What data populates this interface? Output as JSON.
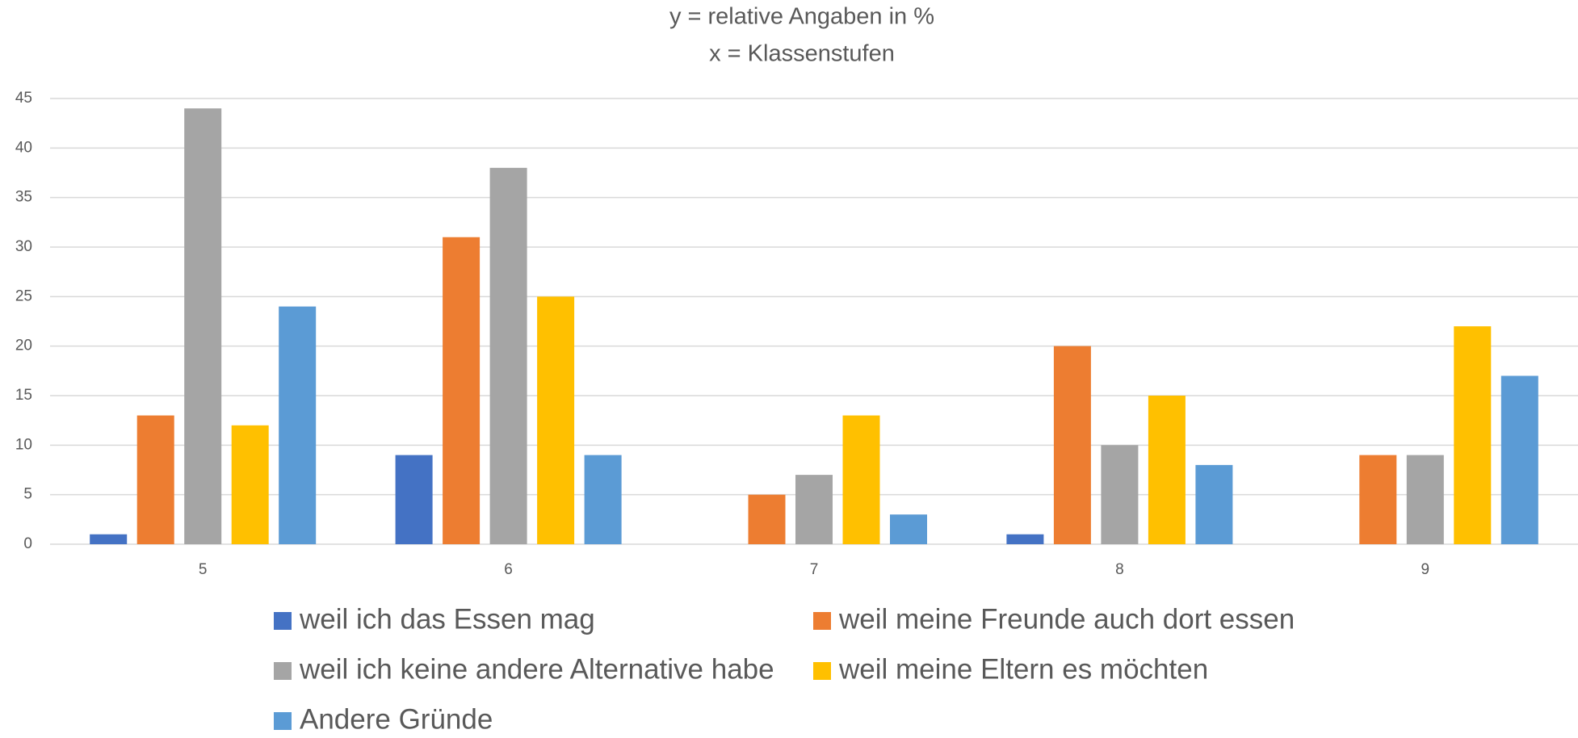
{
  "chart_data": {
    "type": "bar",
    "title": "y = relative Angaben in %",
    "subtitle": "x = Klassenstufen",
    "categories": [
      "5",
      "6",
      "7",
      "8",
      "9"
    ],
    "series": [
      {
        "name": "weil ich das Essen mag",
        "color": "#4472c4",
        "values": [
          1,
          9,
          0,
          1,
          0
        ]
      },
      {
        "name": "weil meine Freunde auch dort essen",
        "color": "#ed7d31",
        "values": [
          13,
          31,
          5,
          20,
          9
        ]
      },
      {
        "name": "weil ich keine andere Alternative habe",
        "color": "#a5a5a5",
        "values": [
          44,
          38,
          7,
          10,
          9
        ]
      },
      {
        "name": "weil meine Eltern es möchten",
        "color": "#ffc000",
        "values": [
          12,
          25,
          13,
          15,
          22
        ]
      },
      {
        "name": "Andere Gründe",
        "color": "#5b9bd5",
        "values": [
          24,
          9,
          3,
          8,
          17
        ]
      }
    ],
    "ylim": [
      0,
      45
    ],
    "yticks": [
      0,
      5,
      10,
      15,
      20,
      25,
      30,
      35,
      40,
      45
    ],
    "grid": true,
    "legend": "bottom"
  }
}
